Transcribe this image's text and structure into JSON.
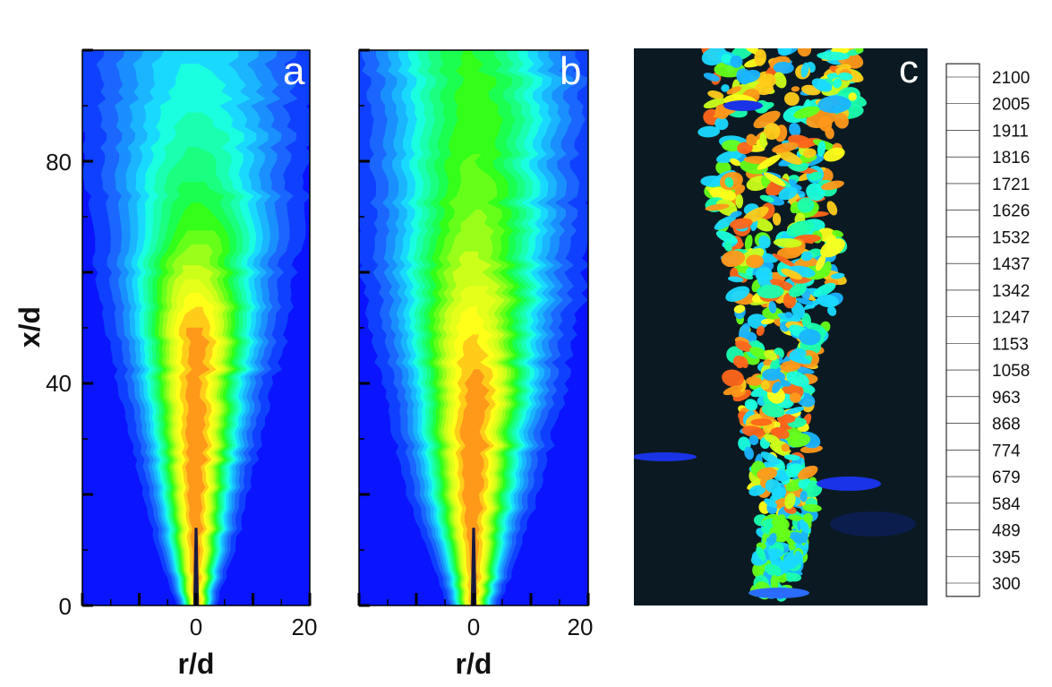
{
  "chart_data": [
    {
      "type": "heatmap",
      "panel_label": "a",
      "xlabel": "r/d",
      "ylabel": "x/d",
      "xlim": [
        -20,
        20
      ],
      "ylim": [
        0,
        100
      ],
      "x_ticks": [
        "0",
        "20"
      ],
      "y_ticks": [
        "0",
        "40",
        "80"
      ],
      "profile": [
        {
          "x": 0,
          "w": 1.5,
          "peak": 1900
        },
        {
          "x": 10,
          "w": 3,
          "peak": 1950
        },
        {
          "x": 20,
          "w": 4,
          "peak": 2000
        },
        {
          "x": 30,
          "w": 5,
          "peak": 2005
        },
        {
          "x": 40,
          "w": 6,
          "peak": 1950
        },
        {
          "x": 50,
          "w": 7,
          "peak": 1950
        },
        {
          "x": 60,
          "w": 8,
          "peak": 1600
        },
        {
          "x": 70,
          "w": 9,
          "peak": 1300
        },
        {
          "x": 80,
          "w": 10,
          "peak": 1100
        },
        {
          "x": 90,
          "w": 11,
          "peak": 950
        },
        {
          "x": 100,
          "w": 12,
          "peak": 850
        }
      ]
    },
    {
      "type": "heatmap",
      "panel_label": "b",
      "xlabel": "r/d",
      "xlim": [
        -20,
        20
      ],
      "ylim": [
        0,
        100
      ],
      "x_ticks": [
        "0",
        "20"
      ],
      "profile": [
        {
          "x": 0,
          "w": 2,
          "peak": 1900
        },
        {
          "x": 10,
          "w": 3.5,
          "peak": 1950
        },
        {
          "x": 20,
          "w": 5,
          "peak": 2005
        },
        {
          "x": 30,
          "w": 6,
          "peak": 2005
        },
        {
          "x": 40,
          "w": 7,
          "peak": 1950
        },
        {
          "x": 50,
          "w": 8,
          "peak": 1800
        },
        {
          "x": 60,
          "w": 9,
          "peak": 1600
        },
        {
          "x": 70,
          "w": 9.5,
          "peak": 1450
        },
        {
          "x": 80,
          "w": 10,
          "peak": 1350
        },
        {
          "x": 90,
          "w": 10.5,
          "peak": 1300
        },
        {
          "x": 100,
          "w": 11,
          "peak": 1250
        }
      ]
    },
    {
      "type": "other",
      "panel_label": "c"
    }
  ],
  "colorbar": {
    "levels": [
      "300",
      "395",
      "489",
      "584",
      "679",
      "774",
      "868",
      "963",
      "1058",
      "1153",
      "1247",
      "1342",
      "1437",
      "1532",
      "1626",
      "1721",
      "1816",
      "1911",
      "2005",
      "2100"
    ],
    "colors": [
      "#0a14ff",
      "#0f40ff",
      "#1a66ff",
      "#1a8fff",
      "#1ab4ff",
      "#1ad9ff",
      "#1affe0",
      "#1affb0",
      "#1aff80",
      "#1aff50",
      "#33ff1a",
      "#66ff1a",
      "#99ff1a",
      "#ccff1a",
      "#e6ff1a",
      "#ffff1a",
      "#ffcc1a",
      "#ff991a",
      "#ff661a",
      "#ff1a1a"
    ]
  }
}
